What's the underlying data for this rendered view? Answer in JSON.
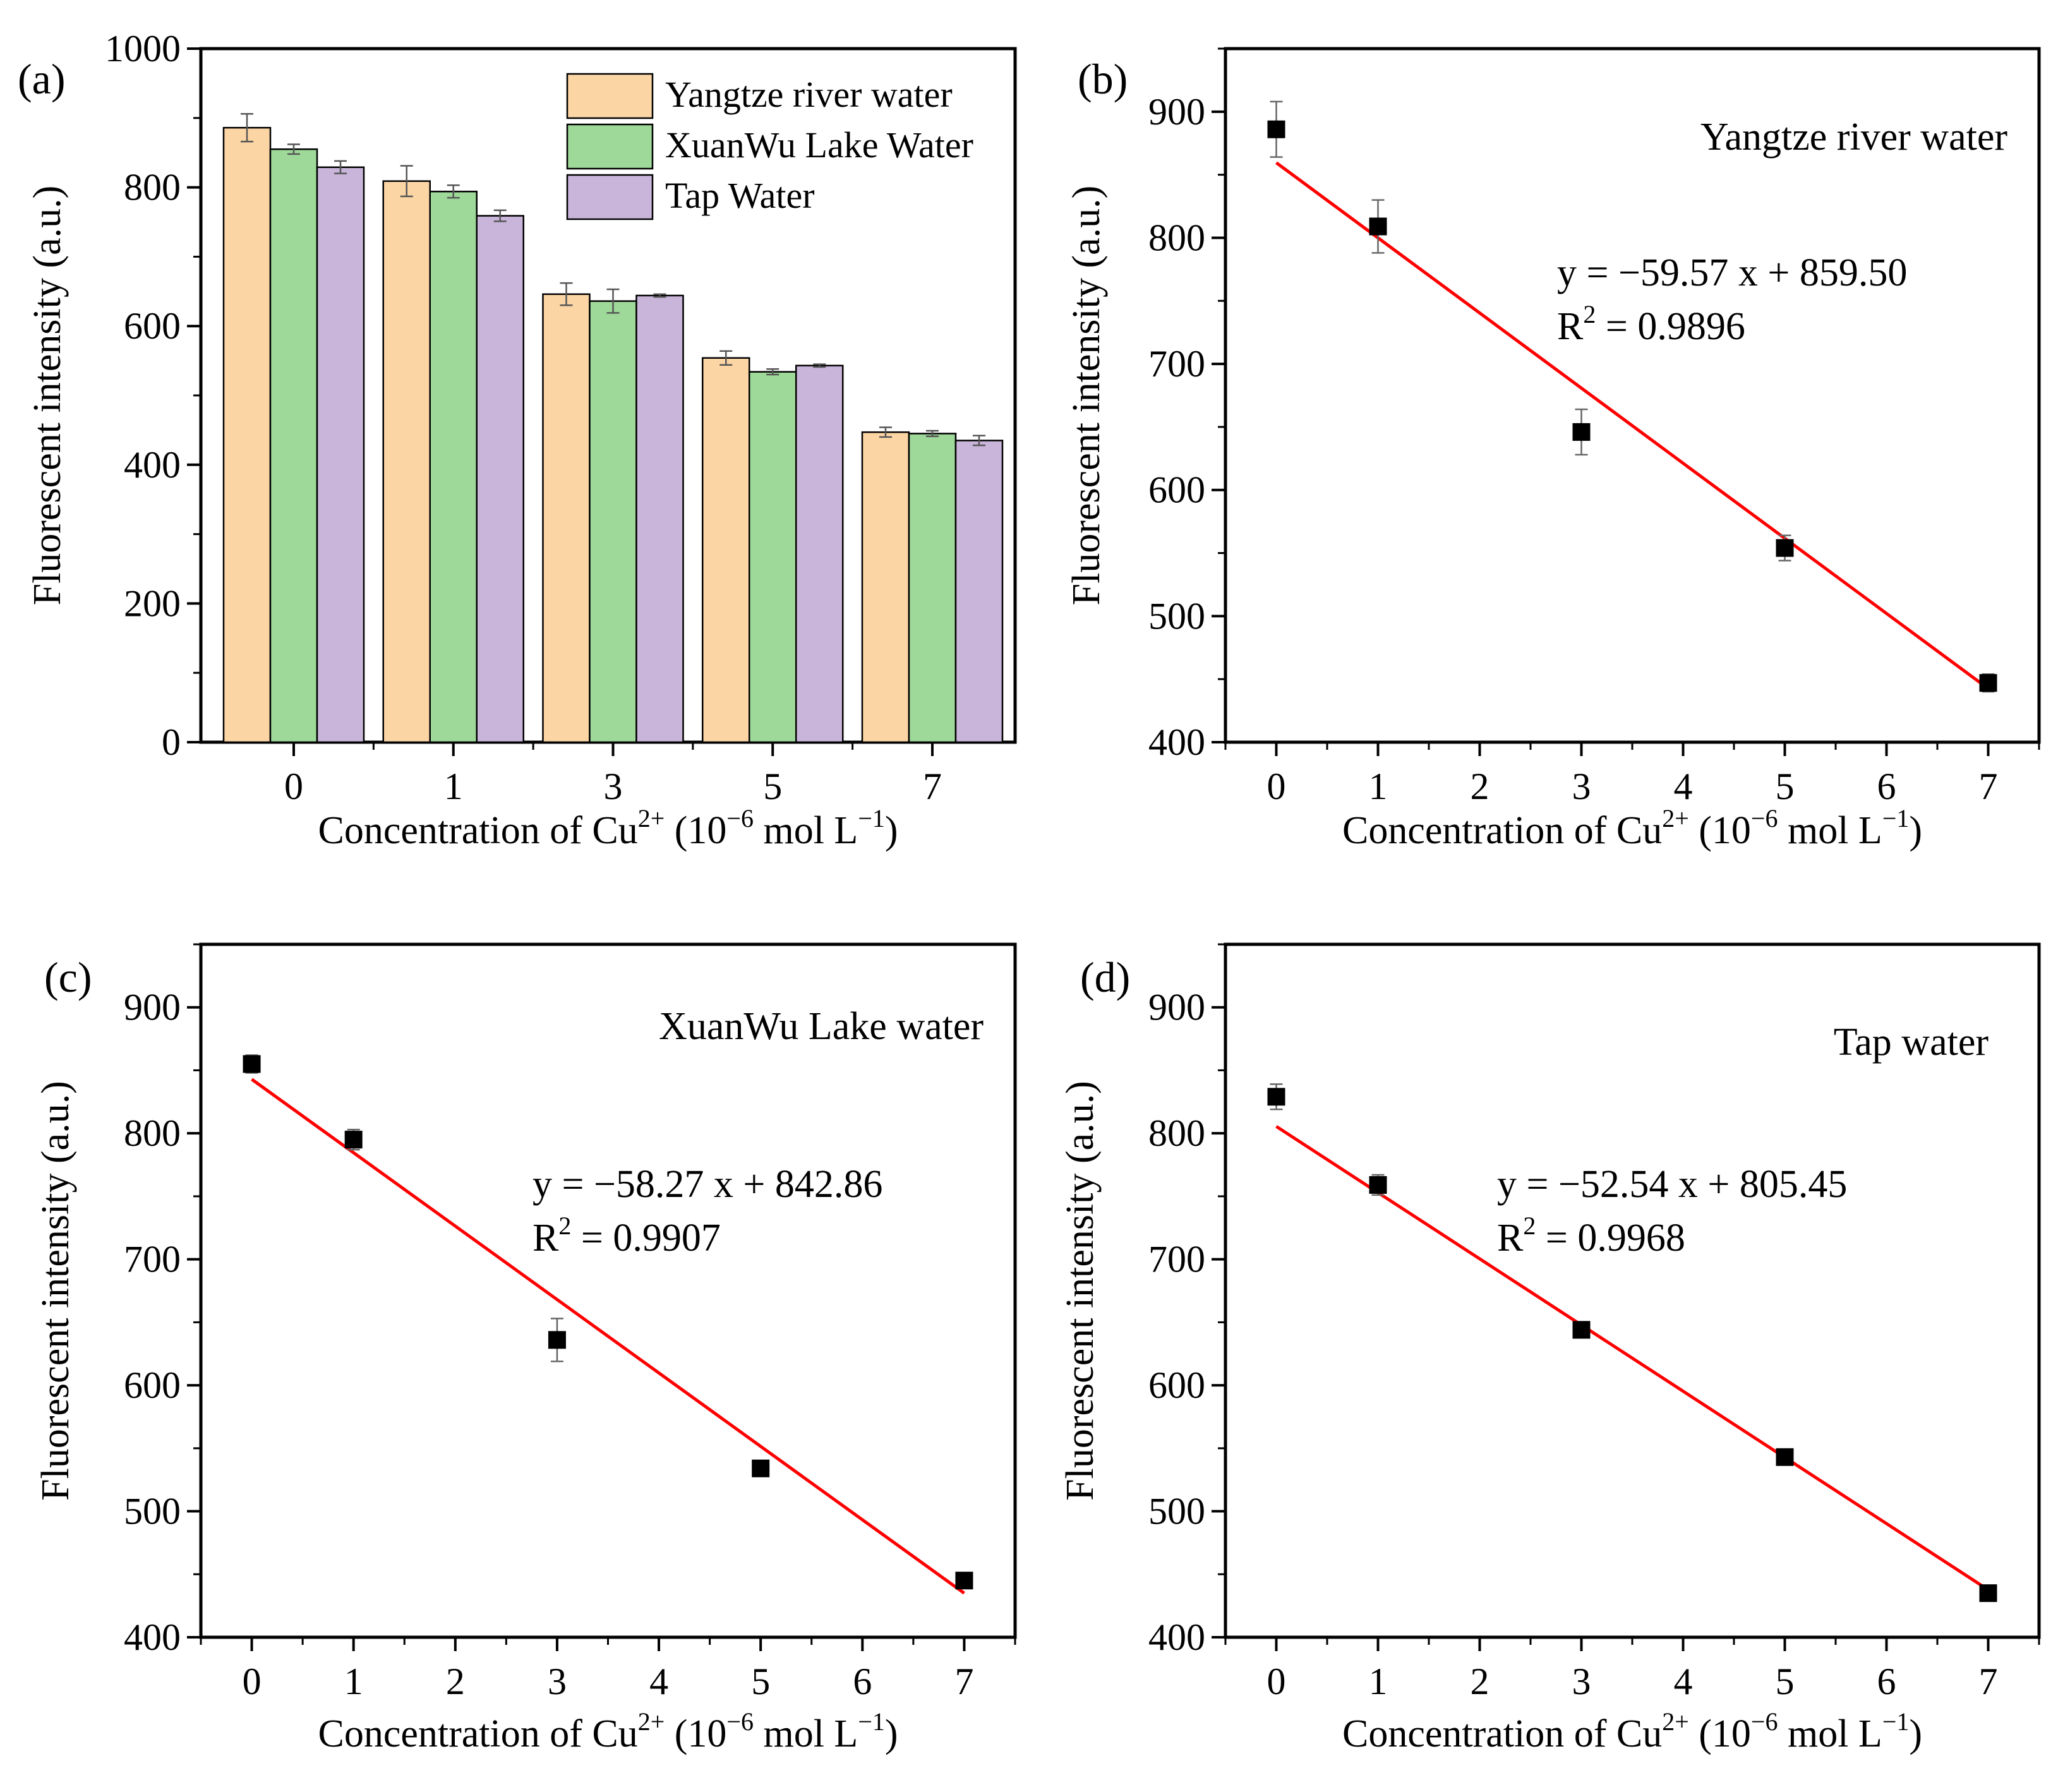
{
  "figure": {
    "colors": {
      "yangtze": "#FCD5A5",
      "xuanwu": "#9ED99A",
      "tap": "#C9B5DA",
      "fit_line": "#FF0000",
      "marker": "#000000"
    }
  },
  "chart_data": [
    {
      "panel_label": "(a)",
      "type": "bar",
      "xlabel": {
        "main": "Concentration of Cu",
        "sup1": "2+",
        "mid": " (10",
        "sup2": "−6",
        "tail": " mol L",
        "sup3": "−1",
        "end": ")"
      },
      "ylabel": "Fluorescent intensity (a.u.)",
      "ylim": [
        0,
        1000
      ],
      "yticks": [
        0,
        200,
        400,
        600,
        800,
        1000
      ],
      "categories": [
        "0",
        "1",
        "3",
        "5",
        "7"
      ],
      "legend_position": "top-right",
      "series": [
        {
          "name": "Yangtze river water",
          "values": [
            886,
            809,
            646,
            554,
            447
          ],
          "errors": [
            20,
            22,
            16,
            10,
            7
          ]
        },
        {
          "name": "XuanWu Lake Water",
          "values": [
            855,
            794,
            636,
            534,
            445
          ],
          "errors": [
            7,
            9,
            17,
            4,
            4
          ]
        },
        {
          "name": "Tap Water",
          "values": [
            829,
            759,
            644,
            543,
            435
          ],
          "errors": [
            9,
            8,
            2,
            2,
            7
          ]
        }
      ]
    },
    {
      "panel_label": "(b)",
      "type": "scatter",
      "title": "Yangtze river water",
      "equation": "y = −59.57 x + 859.50",
      "r2_prefix": "R",
      "r2_sup": "2",
      "r2_value": " = 0.9896",
      "fit": {
        "slope": -59.57,
        "intercept": 859.5
      },
      "xlabel": {
        "main": "Concentration of Cu",
        "sup1": "2+",
        "mid": " (10",
        "sup2": "−6",
        "tail": " mol L",
        "sup3": "−1",
        "end": ")"
      },
      "ylabel": "Fluorescent intensity (a.u.)",
      "xlim": [
        -0.5,
        7.5
      ],
      "ylim": [
        400,
        950
      ],
      "xticks": [
        0,
        1,
        2,
        3,
        4,
        5,
        6,
        7
      ],
      "yticks": [
        400,
        500,
        600,
        700,
        800,
        900
      ],
      "x": [
        0,
        1,
        3,
        5,
        7
      ],
      "y": [
        886,
        809,
        646,
        554,
        447
      ],
      "errors": [
        22,
        21,
        18,
        10,
        7
      ]
    },
    {
      "panel_label": "(c)",
      "type": "scatter",
      "title": "XuanWu Lake water",
      "equation": "y = −58.27 x + 842.86",
      "r2_prefix": "R",
      "r2_sup": "2",
      "r2_value": " = 0.9907",
      "fit": {
        "slope": -58.27,
        "intercept": 842.86
      },
      "xlabel": {
        "main": "Concentration of Cu",
        "sup1": "2+",
        "mid": " (10",
        "sup2": "−6",
        "tail": " mol L",
        "sup3": "−1",
        "end": ")"
      },
      "ylabel": "Fluorescent intensity (a.u.)",
      "xlim": [
        -0.5,
        7.5
      ],
      "ylim": [
        400,
        950
      ],
      "xticks": [
        0,
        1,
        2,
        3,
        4,
        5,
        6,
        7
      ],
      "yticks": [
        400,
        500,
        600,
        700,
        800,
        900
      ],
      "x": [
        0,
        1,
        3,
        5,
        7
      ],
      "y": [
        855,
        795,
        636,
        534,
        445
      ],
      "errors": [
        7,
        8,
        17,
        4,
        4
      ]
    },
    {
      "panel_label": "(d)",
      "type": "scatter",
      "title": "Tap water",
      "equation": "y = −52.54 x + 805.45",
      "r2_prefix": "R",
      "r2_sup": "2",
      "r2_value": " = 0.9968",
      "fit": {
        "slope": -52.54,
        "intercept": 805.45
      },
      "xlabel": {
        "main": "Concentration of Cu",
        "sup1": "2+",
        "mid": " (10",
        "sup2": "−6",
        "tail": " mol L",
        "sup3": "−1",
        "end": ")"
      },
      "ylabel": "Fluorescent intensity (a.u.)",
      "xlim": [
        -0.5,
        7.5
      ],
      "ylim": [
        400,
        950
      ],
      "xticks": [
        0,
        1,
        2,
        3,
        4,
        5,
        6,
        7
      ],
      "yticks": [
        400,
        500,
        600,
        700,
        800,
        900
      ],
      "x": [
        0,
        1,
        3,
        5,
        7
      ],
      "y": [
        829,
        759,
        644,
        543,
        435
      ],
      "errors": [
        10,
        8,
        3,
        3,
        6
      ]
    }
  ]
}
